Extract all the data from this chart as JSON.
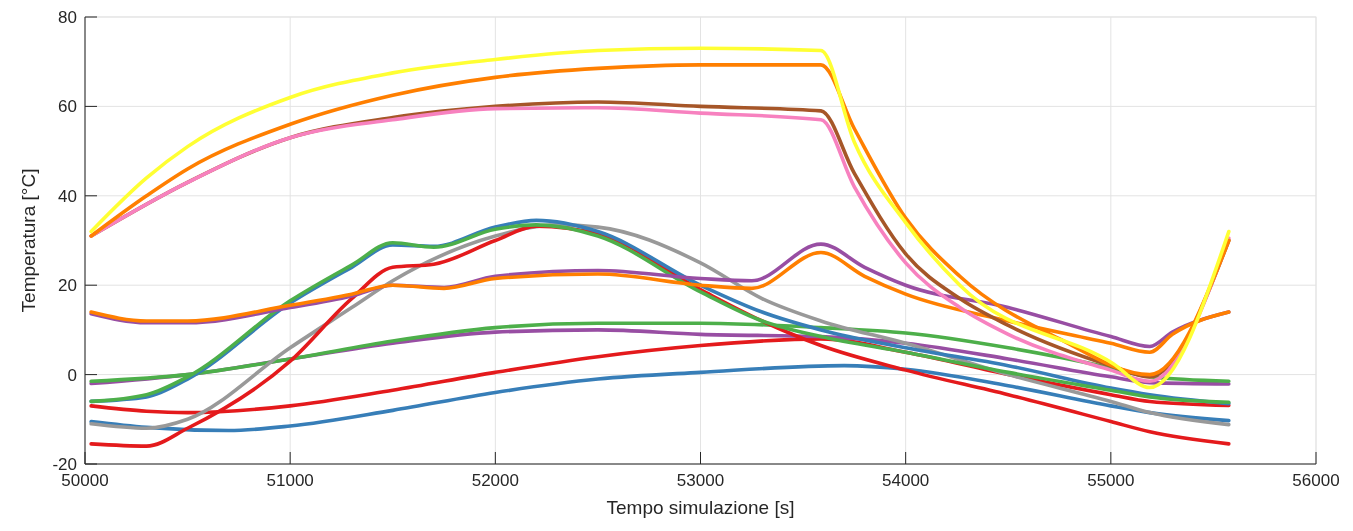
{
  "chart_data": {
    "type": "line",
    "xlabel": "Tempo simulazione [s]",
    "ylabel": "Temperatura [°C]",
    "xlim": [
      50000,
      56000
    ],
    "ylim": [
      -20,
      80
    ],
    "xticks": [
      50000,
      51000,
      52000,
      53000,
      54000,
      55000,
      56000
    ],
    "yticks": [
      -20,
      0,
      20,
      40,
      60,
      80
    ],
    "grid": true,
    "line_style": "solid",
    "marker": "none",
    "series": [
      {
        "color": "#377eb8",
        "x": [
          50030,
          50300,
          50700,
          51000,
          51500,
          52000,
          52500,
          53000,
          53700,
          54000,
          54500,
          55000,
          55190,
          55575
        ],
        "values": [
          -10.5,
          -11.8,
          -12.5,
          -11.5,
          -8,
          -4,
          -1,
          0.5,
          2,
          1.2,
          -2.5,
          -7,
          -8.5,
          -10.3
        ]
      },
      {
        "color": "#e41a1c",
        "x": [
          50030,
          50300,
          50500,
          51000,
          51500,
          52000,
          52500,
          53000,
          53587,
          54000,
          54500,
          55000,
          55190,
          55575
        ],
        "values": [
          -7,
          -8.2,
          -8.5,
          -7,
          -3.5,
          0.5,
          4,
          6.5,
          8,
          5,
          0,
          -4.5,
          -6,
          -6.9
        ]
      },
      {
        "color": "#984ea3",
        "x": [
          50030,
          50500,
          51000,
          51500,
          52000,
          52500,
          53000,
          53587,
          54000,
          54500,
          55000,
          55190,
          55575
        ],
        "values": [
          -2,
          0,
          3.5,
          7,
          9.5,
          10,
          9,
          8.5,
          7,
          3.5,
          -0.5,
          -1.8,
          -2.1
        ]
      },
      {
        "color": "#4daf4a",
        "x": [
          50030,
          50500,
          51000,
          51500,
          52000,
          52500,
          53000,
          53587,
          54000,
          54500,
          55000,
          55190,
          55575
        ],
        "values": [
          -1.5,
          0,
          3.5,
          7.5,
          10.5,
          11.5,
          11.5,
          10.5,
          9.3,
          6,
          1.5,
          -0.5,
          -1.5
        ]
      },
      {
        "color": "#999999",
        "x": [
          50030,
          50300,
          50500,
          51000,
          51300,
          51500,
          52000,
          52300,
          52500,
          53000,
          53300,
          53587,
          54000,
          54500,
          55000,
          55190,
          55575
        ],
        "values": [
          -11,
          -12,
          -10,
          6,
          15,
          21,
          31,
          33.5,
          33,
          25,
          17,
          12,
          7,
          0,
          -6,
          -8.5,
          -11.2
        ]
      },
      {
        "color": "#e41a1c",
        "x": [
          50030,
          50300,
          50500,
          51000,
          51300,
          51500,
          51700,
          52000,
          52200,
          52500,
          53000,
          53300,
          53587,
          54000,
          54500,
          55000,
          55190,
          55575
        ],
        "values": [
          -15.5,
          -16,
          -12,
          3,
          17,
          24,
          24.7,
          30,
          33.2,
          31.5,
          19,
          12,
          6.5,
          1,
          -4.5,
          -10.5,
          -12.8,
          -15.5
        ]
      },
      {
        "color": "#377eb8",
        "x": [
          50030,
          50300,
          50500,
          51000,
          51300,
          51500,
          51700,
          52000,
          52200,
          52500,
          53000,
          53300,
          53587,
          54000,
          54500,
          55000,
          55190,
          55575
        ],
        "values": [
          -6,
          -5,
          -1,
          16,
          24,
          29,
          28.7,
          33,
          34.5,
          32,
          20,
          14,
          10,
          6,
          2,
          -3,
          -4.5,
          -6.5
        ]
      },
      {
        "color": "#4daf4a",
        "x": [
          50030,
          50300,
          50500,
          51000,
          51300,
          51500,
          51700,
          52000,
          52200,
          52500,
          53000,
          53300,
          53587,
          54000,
          54500,
          55000,
          55190,
          55575
        ],
        "values": [
          -6,
          -4.5,
          -0.5,
          16.5,
          24.5,
          29.5,
          28.5,
          32.5,
          33.5,
          31,
          18.5,
          12,
          8.5,
          5,
          0.5,
          -3.5,
          -5,
          -6.2
        ]
      },
      {
        "color": "#984ea3",
        "x": [
          50030,
          50300,
          50500,
          51000,
          51300,
          51500,
          51750,
          52000,
          52500,
          53000,
          53250,
          53587,
          53800,
          54000,
          54500,
          55000,
          55190,
          55300,
          55575
        ],
        "values": [
          13.6,
          11.6,
          11.6,
          15,
          17.6,
          20,
          19.5,
          22,
          23.3,
          21.5,
          21,
          29.2,
          24,
          20,
          15,
          8.5,
          6.3,
          9.5,
          14
        ]
      },
      {
        "color": "#ff7f00",
        "x": [
          50030,
          50300,
          50500,
          51000,
          51300,
          51500,
          51750,
          52000,
          52500,
          53000,
          53250,
          53587,
          53800,
          54000,
          54500,
          55000,
          55190,
          55300,
          55575
        ],
        "values": [
          14,
          12,
          12,
          15.5,
          18,
          20,
          19.3,
          21.5,
          22.5,
          20,
          19.3,
          27.3,
          22,
          18,
          12,
          7,
          5,
          9,
          14
        ]
      },
      {
        "color": "#a65628",
        "x": [
          50030,
          50500,
          51000,
          51500,
          52000,
          52500,
          53000,
          53587,
          53750,
          54000,
          54264,
          54500,
          55000,
          55190,
          55575
        ],
        "values": [
          31,
          43,
          53,
          57.5,
          60,
          61,
          60,
          59,
          45,
          27,
          17,
          11,
          2,
          -0.5,
          30
        ]
      },
      {
        "color": "#f781bf",
        "x": [
          50030,
          50500,
          51000,
          51500,
          52000,
          52500,
          53000,
          53587,
          53750,
          54000,
          54264,
          54500,
          55000,
          55190,
          55575
        ],
        "values": [
          31,
          43,
          53,
          57,
          59.5,
          59.7,
          58.5,
          57,
          42,
          25,
          15,
          9,
          1,
          -1.5,
          30.5
        ]
      },
      {
        "color": "#ff7f00",
        "x": [
          50030,
          50300,
          50500,
          51000,
          51500,
          52000,
          52500,
          53000,
          53587,
          53750,
          54000,
          54264,
          54750,
          55190,
          55575
        ],
        "values": [
          31,
          40,
          46,
          56,
          62.5,
          66.5,
          68.5,
          69.3,
          69.3,
          55,
          35,
          22,
          8,
          0,
          30
        ]
      },
      {
        "color": "#ffff33",
        "x": [
          50030,
          50300,
          50500,
          51000,
          51500,
          52000,
          52500,
          53000,
          53587,
          53750,
          54000,
          54264,
          55010,
          55190,
          55575
        ],
        "values": [
          32,
          44,
          51,
          62,
          67.5,
          70.5,
          72.5,
          73,
          72.5,
          52,
          34,
          20,
          2.5,
          -2.9,
          32
        ]
      }
    ]
  }
}
